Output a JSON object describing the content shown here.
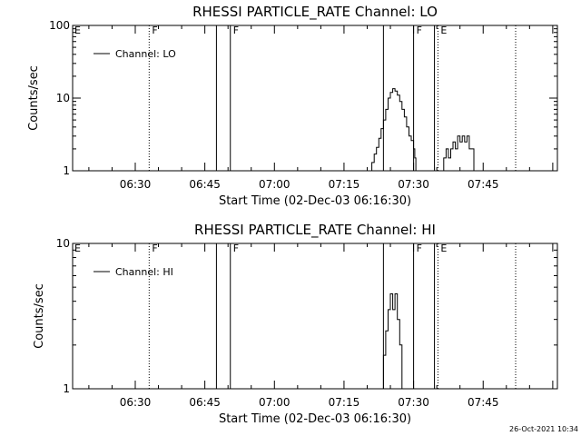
{
  "timestamp": "26-Oct-2021 10:34",
  "chart_data": [
    {
      "type": "line",
      "title": "RHESSI PARTICLE_RATE Channel: LO",
      "xlabel": "Start Time (02-Dec-03 06:16:30)",
      "ylabel": "Counts/sec",
      "log_y": true,
      "ylim": [
        1,
        100
      ],
      "xlim": [
        "06:16:30",
        "08:01:00"
      ],
      "y_ticks": [
        {
          "value": 1,
          "label": "1"
        },
        {
          "value": 10,
          "label": "10"
        },
        {
          "value": 100,
          "label": "100"
        }
      ],
      "x_ticks": [
        {
          "time": "06:30",
          "label": "06:30"
        },
        {
          "time": "06:45",
          "label": "06:45"
        },
        {
          "time": "07:00",
          "label": "07:00"
        },
        {
          "time": "07:15",
          "label": "07:15"
        },
        {
          "time": "07:30",
          "label": "07:30"
        },
        {
          "time": "07:45",
          "label": "07:45"
        }
      ],
      "legend": {
        "placement": "top-left",
        "entries": [
          "Channel: LO"
        ]
      },
      "series": [
        {
          "name": "Channel: LO",
          "points": [
            [
              "07:20:00",
              1
            ],
            [
              "07:21:00",
              1.3
            ],
            [
              "07:21:30",
              1.7
            ],
            [
              "07:22:00",
              2.1
            ],
            [
              "07:22:30",
              2.8
            ],
            [
              "07:23:00",
              3.8
            ],
            [
              "07:23:30",
              5
            ],
            [
              "07:24:00",
              7
            ],
            [
              "07:24:30",
              10
            ],
            [
              "07:25:00",
              12
            ],
            [
              "07:25:30",
              13.5
            ],
            [
              "07:26:00",
              12.5
            ],
            [
              "07:26:30",
              11
            ],
            [
              "07:27:00",
              9
            ],
            [
              "07:27:30",
              7
            ],
            [
              "07:28:00",
              5.5
            ],
            [
              "07:28:30",
              4
            ],
            [
              "07:29:00",
              3
            ],
            [
              "07:29:30",
              2.6
            ],
            [
              "07:30:00",
              2
            ],
            [
              "07:30:15",
              1.5
            ],
            [
              "07:30:30",
              1
            ],
            [
              "07:36:00",
              1
            ],
            [
              "07:36:30",
              1.5
            ],
            [
              "07:37:00",
              2
            ],
            [
              "07:37:30",
              1.5
            ],
            [
              "07:38:00",
              2
            ],
            [
              "07:38:30",
              2.5
            ],
            [
              "07:39:00",
              2
            ],
            [
              "07:39:30",
              3
            ],
            [
              "07:40:00",
              2.5
            ],
            [
              "07:40:30",
              3
            ],
            [
              "07:41:00",
              2.5
            ],
            [
              "07:41:30",
              3
            ],
            [
              "07:42:00",
              2
            ],
            [
              "07:42:30",
              2
            ],
            [
              "07:43:00",
              1
            ]
          ]
        }
      ],
      "vertical_markers": [
        {
          "time": "06:33:00",
          "style": "dotted",
          "label": "F"
        },
        {
          "time": "06:47:30",
          "style": "solid",
          "label": ""
        },
        {
          "time": "06:50:30",
          "style": "solid",
          "label": "F"
        },
        {
          "time": "07:23:30",
          "style": "solid",
          "label": ""
        },
        {
          "time": "07:30:00",
          "style": "solid",
          "label": "F"
        },
        {
          "time": "07:34:30",
          "style": "solid",
          "label": ""
        },
        {
          "time": "07:35:15",
          "style": "dotted",
          "label": "E"
        },
        {
          "time": "07:52:00",
          "style": "dotted",
          "label": ""
        }
      ],
      "left_marker_label": "E"
    },
    {
      "type": "line",
      "title": "RHESSI PARTICLE_RATE Channel: HI",
      "xlabel": "Start Time (02-Dec-03 06:16:30)",
      "ylabel": "Counts/sec",
      "log_y": true,
      "ylim": [
        1,
        10
      ],
      "xlim": [
        "06:16:30",
        "08:01:00"
      ],
      "y_ticks": [
        {
          "value": 1,
          "label": "1"
        },
        {
          "value": 10,
          "label": "10"
        }
      ],
      "x_ticks": [
        {
          "time": "06:30",
          "label": "06:30"
        },
        {
          "time": "06:45",
          "label": "06:45"
        },
        {
          "time": "07:00",
          "label": "07:00"
        },
        {
          "time": "07:15",
          "label": "07:15"
        },
        {
          "time": "07:30",
          "label": "07:30"
        },
        {
          "time": "07:45",
          "label": "07:45"
        }
      ],
      "legend": {
        "placement": "top-left",
        "entries": [
          "Channel: HI"
        ]
      },
      "series": [
        {
          "name": "Channel: HI",
          "points": [
            [
              "07:23:00",
              1
            ],
            [
              "07:23:30",
              1.7
            ],
            [
              "07:24:00",
              2.5
            ],
            [
              "07:24:30",
              3.5
            ],
            [
              "07:25:00",
              4.5
            ],
            [
              "07:25:30",
              3.5
            ],
            [
              "07:26:00",
              4.5
            ],
            [
              "07:26:30",
              3
            ],
            [
              "07:27:00",
              2
            ],
            [
              "07:27:30",
              1
            ]
          ]
        }
      ],
      "vertical_markers": [
        {
          "time": "06:33:00",
          "style": "dotted",
          "label": "F"
        },
        {
          "time": "06:47:30",
          "style": "solid",
          "label": ""
        },
        {
          "time": "06:50:30",
          "style": "solid",
          "label": "F"
        },
        {
          "time": "07:23:30",
          "style": "solid",
          "label": ""
        },
        {
          "time": "07:30:00",
          "style": "solid",
          "label": "F"
        },
        {
          "time": "07:34:30",
          "style": "solid",
          "label": ""
        },
        {
          "time": "07:35:15",
          "style": "dotted",
          "label": "E"
        },
        {
          "time": "07:52:00",
          "style": "dotted",
          "label": ""
        }
      ],
      "left_marker_label": "E"
    }
  ]
}
